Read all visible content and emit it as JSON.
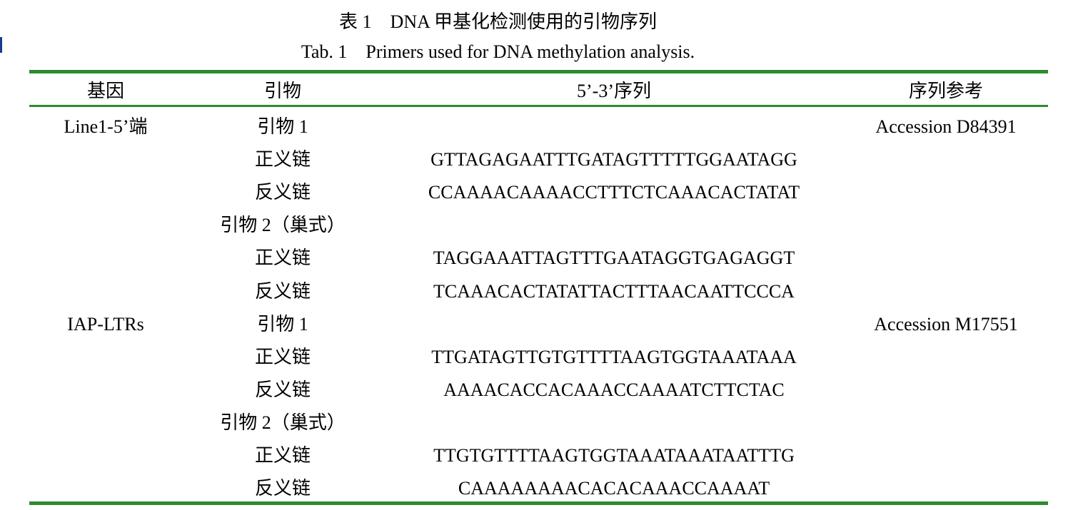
{
  "caption": {
    "zh": "表 1　DNA 甲基化检测使用的引物序列",
    "en": "Tab. 1　Primers used for DNA methylation analysis."
  },
  "table": {
    "headers": [
      "基因",
      "引物",
      "5’-3’序列",
      "序列参考"
    ],
    "rows": [
      {
        "gene": "Line1-5’端",
        "primer": "引物 1",
        "sequence": "",
        "reference": "Accession D84391"
      },
      {
        "gene": "",
        "primer": "正义链",
        "sequence": "GTTAGAGAATTTGATAGTTTTTGGAATAGG",
        "reference": ""
      },
      {
        "gene": "",
        "primer": "反义链",
        "sequence": "CCAAAACAAAACCTTTCTCAAACACTATAT",
        "reference": ""
      },
      {
        "gene": "",
        "primer": "引物 2（巢式）",
        "sequence": "",
        "reference": ""
      },
      {
        "gene": "",
        "primer": "正义链",
        "sequence": "TAGGAAATTAGTTTGAATAGGTGAGAGGT",
        "reference": ""
      },
      {
        "gene": "",
        "primer": "反义链",
        "sequence": "TCAAACACTATATTACTTTAACAATTCCCA",
        "reference": ""
      },
      {
        "gene": "IAP-LTRs",
        "primer": "引物 1",
        "sequence": "",
        "reference": "Accession M17551"
      },
      {
        "gene": "",
        "primer": "正义链",
        "sequence": "TTGATAGTTGTGTTTTAAGTGGTAAATAAA",
        "reference": ""
      },
      {
        "gene": "",
        "primer": "反义链",
        "sequence": "AAAACACCACAAACCAAAATCTTCTAC",
        "reference": ""
      },
      {
        "gene": "",
        "primer": "引物 2（巢式）",
        "sequence": "",
        "reference": ""
      },
      {
        "gene": "",
        "primer": "正义链",
        "sequence": "TTGTGTTTTAAGTGGTAAATAAATAATTTG",
        "reference": ""
      },
      {
        "gene": "",
        "primer": "反义链",
        "sequence": "CAAAAAAAACACACAAACCAAAAT",
        "reference": ""
      }
    ]
  },
  "colors": {
    "rule": "#2e8b2e",
    "text": "#000000"
  }
}
